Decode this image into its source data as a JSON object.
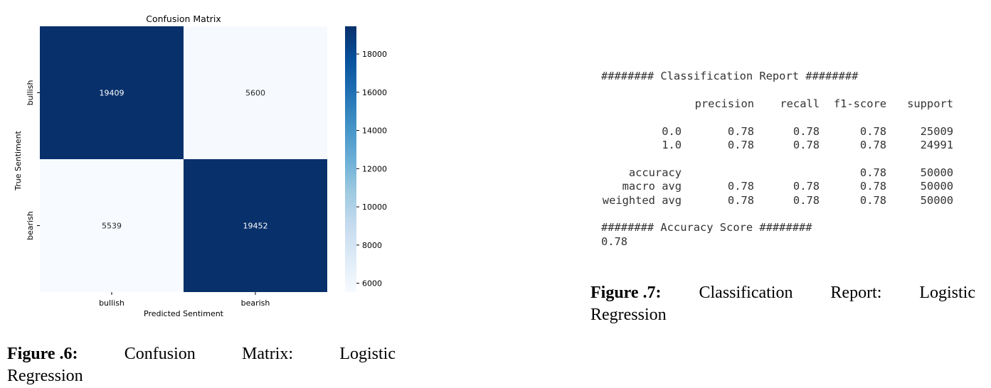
{
  "chart_data": {
    "type": "heatmap",
    "title": "Confusion Matrix",
    "xlabel": "Predicted Sentiment",
    "ylabel": "True Sentiment",
    "x_categories": [
      "bullish",
      "bearish"
    ],
    "y_categories": [
      "bullish",
      "bearish"
    ],
    "values": [
      [
        19409,
        5600
      ],
      [
        5539,
        19452
      ]
    ],
    "colorbar": {
      "min": 5539,
      "max": 19452,
      "ticks": [
        6000,
        8000,
        10000,
        12000,
        14000,
        16000,
        18000
      ],
      "tick_labels": [
        "6000",
        "8000",
        "10000",
        "12000",
        "14000",
        "16000",
        "18000"
      ],
      "colormap": "Blues",
      "color_low": "#f7fbff",
      "color_high": "#08306b"
    }
  },
  "caption6": {
    "label": "Figure .6:",
    "text_words": [
      "Confusion",
      "Matrix:",
      "Logistic"
    ],
    "text_line2": "Regression"
  },
  "report": {
    "header_line": "######## Classification Report ########",
    "columns": [
      "precision",
      "recall",
      "f1-score",
      "support"
    ],
    "rows": [
      {
        "label": "0.0",
        "cells": [
          "0.78",
          "0.78",
          "0.78",
          "25009"
        ]
      },
      {
        "label": "1.0",
        "cells": [
          "0.78",
          "0.78",
          "0.78",
          "24991"
        ]
      }
    ],
    "summary": [
      {
        "label": "accuracy",
        "cells": [
          "",
          "",
          "0.78",
          "50000"
        ]
      },
      {
        "label": "macro avg",
        "cells": [
          "0.78",
          "0.78",
          "0.78",
          "50000"
        ]
      },
      {
        "label": "weighted avg",
        "cells": [
          "0.78",
          "0.78",
          "0.78",
          "50000"
        ]
      }
    ],
    "accuracy_header": "######## Accuracy Score ########",
    "accuracy_value": "0.78"
  },
  "caption7": {
    "label": "Figure .7:",
    "text_words": [
      "Classification",
      "Report:",
      "Logistic"
    ],
    "text_line2": "Regression"
  }
}
